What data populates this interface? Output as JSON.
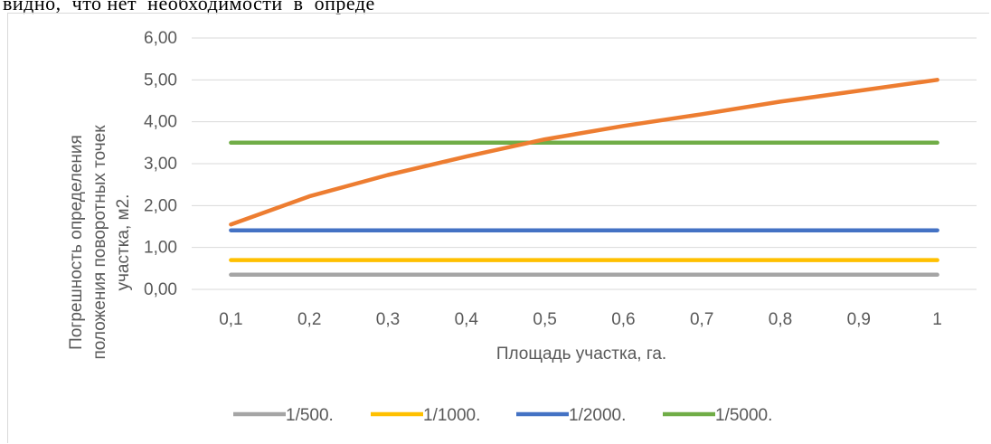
{
  "page": {
    "top_text": "видно,  что нет  необходимости  в  опреде"
  },
  "colors": {
    "series_500": "#a5a5a5",
    "series_1000": "#ffc000",
    "series_2000": "#4472c4",
    "series_5000": "#70ad47",
    "series_unlabeled": "#ed7d31",
    "grid": "#d9d9d9",
    "text": "#595959"
  },
  "chart_data": {
    "type": "line",
    "title": "",
    "xlabel": "Площадь участка, га.",
    "ylabel_lines": [
      "Погрешность определения",
      "положения поворотных  точек",
      "участка, м2."
    ],
    "categories": [
      "0,1",
      "0,2",
      "0,3",
      "0,4",
      "0,5",
      "0,6",
      "0,7",
      "0,8",
      "0,9",
      "1"
    ],
    "ylim": [
      0,
      6
    ],
    "y_ticks": [
      "0,00",
      "1,00",
      "2,00",
      "3,00",
      "4,00",
      "5,00",
      "6,00"
    ],
    "grid": true,
    "legend_position": "bottom",
    "series": [
      {
        "name": "1/500.",
        "color": "#a5a5a5",
        "values": [
          0.35,
          0.35,
          0.35,
          0.35,
          0.35,
          0.35,
          0.35,
          0.35,
          0.35,
          0.35
        ]
      },
      {
        "name": "1/1000.",
        "color": "#ffc000",
        "values": [
          0.7,
          0.7,
          0.7,
          0.7,
          0.7,
          0.7,
          0.7,
          0.7,
          0.7,
          0.7
        ]
      },
      {
        "name": "1/2000.",
        "color": "#4472c4",
        "values": [
          1.41,
          1.41,
          1.41,
          1.41,
          1.41,
          1.41,
          1.41,
          1.41,
          1.41,
          1.41
        ]
      },
      {
        "name": "1/5000.",
        "color": "#70ad47",
        "values": [
          3.5,
          3.5,
          3.5,
          3.5,
          3.5,
          3.5,
          3.5,
          3.5,
          3.5,
          3.5
        ]
      },
      {
        "color": "#ed7d31",
        "values": [
          1.55,
          2.22,
          2.73,
          3.17,
          3.58,
          3.9,
          4.18,
          4.48,
          4.74,
          5.0
        ]
      }
    ],
    "legend_series_count": 4
  }
}
